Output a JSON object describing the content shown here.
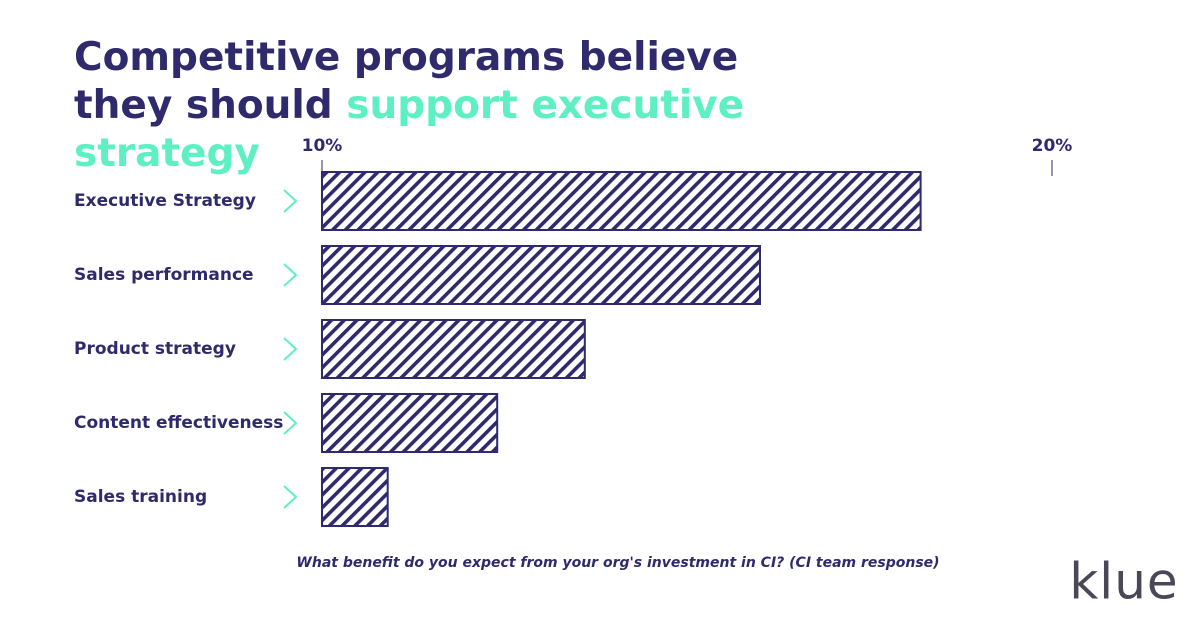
{
  "chart_data": {
    "type": "hbar",
    "title": "Competitive programs believe they should",
    "title_highlight": "support executive strategy",
    "categories": [
      "Executive Strategy",
      "Sales performance",
      "Product strategy",
      "Content effectiveness",
      "Sales training"
    ],
    "values": [
      18.2,
      16.0,
      13.6,
      12.4,
      10.9
    ],
    "color": "#2e2a6b",
    "xlim": [
      10,
      20
    ],
    "xticks": [
      {
        "value": 10,
        "label": "10%"
      },
      {
        "value": 20,
        "label": "20%"
      }
    ],
    "note": "What benefit do you expect from your org's investment in CI? (CI team response)",
    "logo": "klue"
  }
}
